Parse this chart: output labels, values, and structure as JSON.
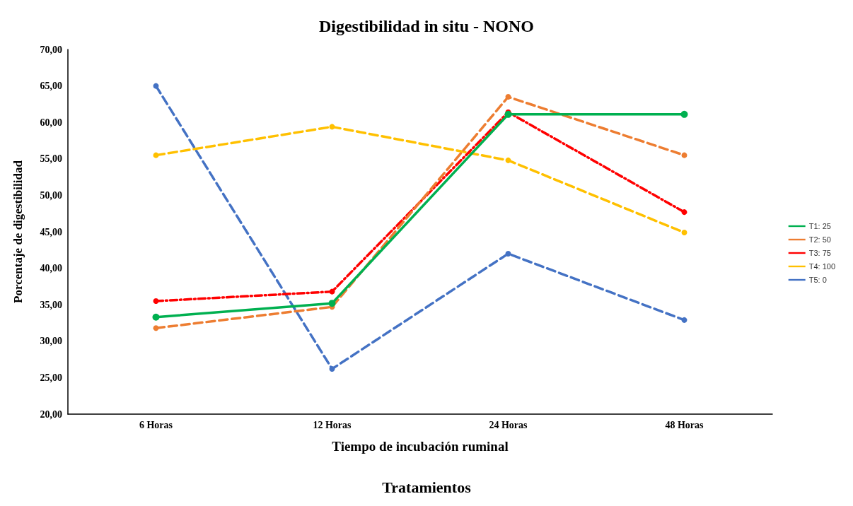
{
  "chart_data": {
    "type": "line",
    "title": "Digestibilidad in situ - NONO",
    "xlabel": "Tiempo de incubación ruminal",
    "ylabel": "Porcentaje de digestibilidad",
    "annotations": [
      "Tratamientos"
    ],
    "categories": [
      "6 Horas",
      "12 Horas",
      "24 Horas",
      "48 Horas"
    ],
    "series": [
      {
        "name": "T1: 25",
        "color": "#00b050",
        "line_style": "solid",
        "values": [
          33.3,
          35.2,
          61.1,
          61.1
        ]
      },
      {
        "name": "T2: 50",
        "color": "#ed7d31",
        "line_style": "dashed",
        "values": [
          31.8,
          34.7,
          63.5,
          55.5
        ]
      },
      {
        "name": "T3: 75",
        "color": "#ff0000",
        "line_style": "dashdot",
        "values": [
          35.5,
          36.8,
          61.4,
          47.7
        ]
      },
      {
        "name": "T4: 100",
        "color": "#ffc000",
        "line_style": "dashed",
        "values": [
          55.5,
          59.4,
          54.8,
          44.9
        ]
      },
      {
        "name": "T5: 0",
        "color": "#4472c4",
        "line_style": "dashed",
        "values": [
          65.0,
          26.2,
          42.0,
          32.9
        ]
      }
    ],
    "ylim": [
      20,
      70
    ],
    "yticks": [
      {
        "value": 20,
        "label": "20,00"
      },
      {
        "value": 25,
        "label": "25,00"
      },
      {
        "value": 30,
        "label": "30,00"
      },
      {
        "value": 35,
        "label": "35,00"
      },
      {
        "value": 40,
        "label": "40,00"
      },
      {
        "value": 45,
        "label": "45,00"
      },
      {
        "value": 50,
        "label": "50,00"
      },
      {
        "value": 55,
        "label": "55,00"
      },
      {
        "value": 60,
        "label": "60,00"
      },
      {
        "value": 65,
        "label": "65,00"
      },
      {
        "value": 70,
        "label": "70,00"
      }
    ],
    "grid": false,
    "legend": "right",
    "marker": "circle"
  }
}
